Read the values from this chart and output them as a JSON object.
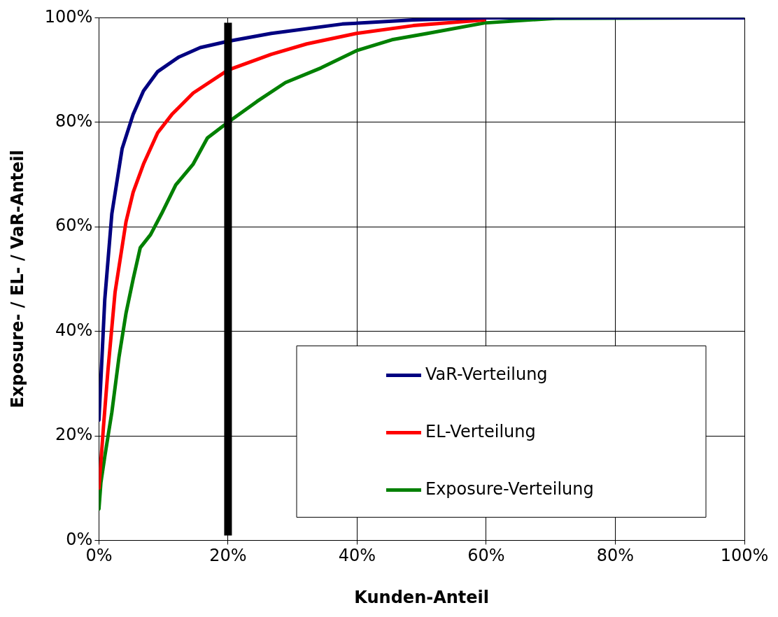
{
  "chart_data": {
    "type": "line",
    "xlabel": "Kunden-Anteil",
    "ylabel": "Exposure- / EL- / VaR-Anteil",
    "xlim": [
      0,
      100
    ],
    "ylim": [
      0,
      100
    ],
    "xticks": [
      {
        "value": 0,
        "label": "0%"
      },
      {
        "value": 20,
        "label": "20%"
      },
      {
        "value": 40,
        "label": "40%"
      },
      {
        "value": 60,
        "label": "60%"
      },
      {
        "value": 80,
        "label": "80%"
      },
      {
        "value": 100,
        "label": "100%"
      }
    ],
    "yticks": [
      {
        "value": 0,
        "label": "0%"
      },
      {
        "value": 20,
        "label": "20%"
      },
      {
        "value": 40,
        "label": "40%"
      },
      {
        "value": 60,
        "label": "60%"
      },
      {
        "value": 80,
        "label": "80%"
      },
      {
        "value": 100,
        "label": "100%"
      }
    ],
    "grid": true,
    "legend": "bottom right",
    "ref_lines": [
      {
        "axis": "x",
        "value": 20,
        "color": "#000000"
      }
    ],
    "series": [
      {
        "name": "VaR-Verteilung",
        "color": "#000080",
        "x": [
          0,
          0.9,
          2,
          3.6,
          5.3,
          6.9,
          9.1,
          12.4,
          15.7,
          20,
          26.7,
          37.7,
          48.7,
          59.7,
          80,
          100
        ],
        "values": [
          23,
          46,
          62.5,
          75,
          81.5,
          86,
          89.7,
          92.5,
          94.3,
          95.5,
          97,
          98.8,
          99.6,
          100,
          100,
          100
        ]
      },
      {
        "name": "EL-Verteilung",
        "color": "#ff0000",
        "x": [
          0,
          0.7,
          1.4,
          2.5,
          4.2,
          5.3,
          6.9,
          9.1,
          11.3,
          14.6,
          20,
          26.7,
          32.2,
          39.9,
          48.7,
          59.7
        ],
        "values": [
          10,
          21.7,
          32.6,
          47.5,
          61,
          66.6,
          72,
          78,
          81.5,
          85.6,
          90,
          93,
          95,
          97,
          98.5,
          99.6
        ]
      },
      {
        "name": "Exposure-Verteilung",
        "color": "#008000",
        "x": [
          0,
          0.3,
          0.9,
          2,
          3.1,
          4.2,
          5.3,
          6.4,
          8,
          9.7,
          11.9,
          14.6,
          16.8,
          20,
          24.5,
          28.9,
          34.4,
          39.9,
          45.4,
          50.9,
          59.7,
          70.7,
          100
        ],
        "values": [
          6,
          11,
          16,
          24.5,
          35,
          43.5,
          50,
          56,
          58.5,
          62.5,
          68,
          72,
          77,
          80,
          84,
          87.6,
          90.4,
          93.7,
          95.8,
          97,
          99,
          99.9,
          100
        ]
      }
    ]
  }
}
